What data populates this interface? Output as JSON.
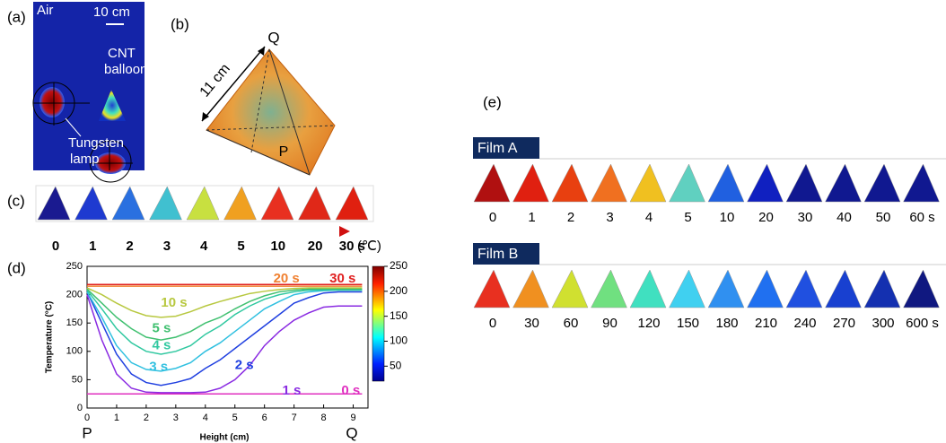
{
  "panels": {
    "a": {
      "label": "(a)",
      "air": "Air",
      "scale": "10 cm",
      "balloon": [
        "CNT",
        "balloon"
      ],
      "lamp": [
        "Tungsten",
        "lamp"
      ]
    },
    "b": {
      "label": "(b)",
      "length": "11 cm",
      "top": "Q",
      "bottom": "P"
    },
    "c": {
      "label": "(c)",
      "times": [
        "0",
        "1",
        "2",
        "3",
        "4",
        "5",
        "10",
        "20",
        "30 s"
      ],
      "unit": "(℃)",
      "colors": [
        "#1a1a90",
        "#1e3ad0",
        "#2a70e0",
        "#40c0d0",
        "#c8e040",
        "#f0a020",
        "#e83020",
        "#e02818",
        "#e02010"
      ]
    },
    "e": {
      "label": "(e)",
      "films": [
        {
          "name": "Film A",
          "labels": [
            "0",
            "1",
            "2",
            "3",
            "4",
            "5",
            "10",
            "20",
            "30",
            "40",
            "50",
            "60 s"
          ],
          "colors": [
            "#b01010",
            "#e02010",
            "#e84010",
            "#f07020",
            "#f0c020",
            "#60d0c0",
            "#2060e0",
            "#1020c0",
            "#101890",
            "#101890",
            "#101890",
            "#101890"
          ]
        },
        {
          "name": "Film B",
          "labels": [
            "0",
            "30",
            "60",
            "90",
            "120",
            "150",
            "180",
            "210",
            "240",
            "270",
            "300",
            "600 s"
          ],
          "colors": [
            "#e83020",
            "#f09020",
            "#d0e030",
            "#70e080",
            "#40e0c0",
            "#40d0f0",
            "#3090f0",
            "#2070f0",
            "#2050e0",
            "#1840d0",
            "#1430b0",
            "#101880"
          ]
        }
      ]
    }
  },
  "chart_data": {
    "type": "line",
    "label": "(d)",
    "x_label": "Height (cm)",
    "y_label": "Temperature (°C)",
    "x_end_labels": [
      "P",
      "Q"
    ],
    "xlim": [
      0,
      9.5
    ],
    "xticks": [
      0,
      1,
      2,
      3,
      4,
      5,
      6,
      7,
      8,
      9
    ],
    "ylim": [
      0,
      250
    ],
    "yticks": [
      0,
      50,
      100,
      150,
      200,
      250
    ],
    "colorbar": {
      "lim": [
        20,
        250
      ],
      "ticks": [
        50,
        100,
        150,
        200,
        250
      ]
    },
    "x": [
      0,
      0.5,
      1,
      1.5,
      2,
      2.5,
      3,
      3.5,
      4,
      4.5,
      5,
      5.5,
      6,
      6.5,
      7,
      7.5,
      8,
      8.5,
      9,
      9.3
    ],
    "series": [
      {
        "name": "0 s",
        "color": "#e030c0",
        "values": [
          25,
          25,
          25,
          25,
          25,
          25,
          25,
          25,
          25,
          25,
          25,
          25,
          25,
          25,
          25,
          25,
          25,
          25,
          25,
          25
        ]
      },
      {
        "name": "1 s",
        "color": "#8a2be2",
        "values": [
          200,
          120,
          60,
          35,
          28,
          27,
          27,
          27,
          28,
          35,
          50,
          75,
          110,
          135,
          155,
          168,
          178,
          180,
          180,
          180
        ]
      },
      {
        "name": "2 s",
        "color": "#2040e0",
        "values": [
          205,
          150,
          95,
          60,
          45,
          40,
          45,
          52,
          70,
          85,
          105,
          125,
          145,
          165,
          185,
          195,
          203,
          205,
          205,
          205
        ]
      },
      {
        "name": "3 s",
        "color": "#30c0e0",
        "values": [
          205,
          160,
          110,
          80,
          68,
          65,
          70,
          80,
          100,
          115,
          135,
          155,
          175,
          188,
          200,
          205,
          207,
          208,
          208,
          208
        ]
      },
      {
        "name": "4 s",
        "color": "#30c8a0",
        "values": [
          208,
          175,
          140,
          115,
          100,
          95,
          100,
          110,
          130,
          145,
          165,
          180,
          192,
          200,
          205,
          208,
          208,
          208,
          208,
          208
        ]
      },
      {
        "name": "5 s",
        "color": "#40c070",
        "values": [
          210,
          185,
          160,
          140,
          125,
          120,
          125,
          135,
          150,
          160,
          175,
          188,
          198,
          205,
          208,
          210,
          210,
          210,
          210,
          210
        ]
      },
      {
        "name": "10 s",
        "color": "#b8c840",
        "values": [
          212,
          200,
          185,
          172,
          163,
          160,
          162,
          170,
          180,
          188,
          195,
          202,
          206,
          209,
          211,
          212,
          212,
          212,
          212,
          212
        ]
      },
      {
        "name": "20 s",
        "color": "#f08030",
        "values": [
          215,
          215,
          215,
          215,
          215,
          215,
          215,
          215,
          215,
          215,
          215,
          215,
          215,
          215,
          215,
          215,
          215,
          215,
          215,
          215
        ]
      },
      {
        "name": "30 s",
        "color": "#e02020",
        "values": [
          218,
          218,
          218,
          218,
          218,
          218,
          218,
          218,
          218,
          218,
          218,
          218,
          218,
          218,
          218,
          218,
          218,
          218,
          218,
          218
        ]
      }
    ]
  }
}
